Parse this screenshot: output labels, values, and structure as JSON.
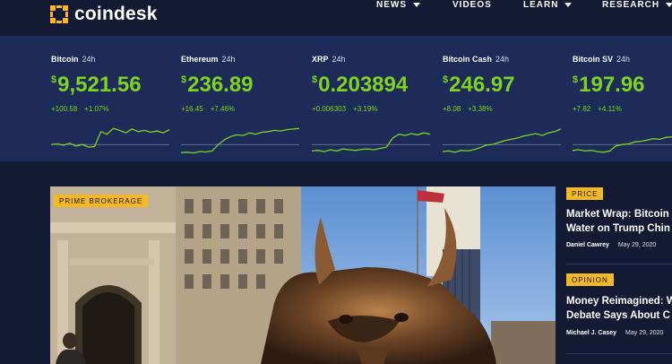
{
  "header": {
    "logo_text": "coindesk",
    "nav": [
      {
        "label": "NEWS",
        "dropdown": true
      },
      {
        "label": "VIDEOS",
        "dropdown": false
      },
      {
        "label": "LEARN",
        "dropdown": true
      },
      {
        "label": "RESEARCH",
        "dropdown": true
      }
    ]
  },
  "ticker": [
    {
      "name": "Bitcoin",
      "period": "24h",
      "currency": "$",
      "price": "9,521.56",
      "change": "+100.58",
      "change_pct": "+1.07%",
      "trend": [
        0.3,
        0.32,
        0.28,
        0.34,
        0.25,
        0.3,
        0.22,
        0.24,
        0.7,
        0.62,
        0.8,
        0.74,
        0.66,
        0.78,
        0.7,
        0.74,
        0.68,
        0.72,
        0.66,
        0.76
      ]
    },
    {
      "name": "Ethereum",
      "period": "24h",
      "currency": "$",
      "price": "236.89",
      "change": "+16.45",
      "change_pct": "+7.46%",
      "trend": [
        0.05,
        0.06,
        0.04,
        0.08,
        0.07,
        0.1,
        0.3,
        0.45,
        0.55,
        0.6,
        0.58,
        0.66,
        0.62,
        0.68,
        0.7,
        0.74,
        0.72,
        0.76,
        0.78,
        0.8
      ]
    },
    {
      "name": "XRP",
      "period": "24h",
      "currency": "$",
      "price": "0.203894",
      "change": "+0.006303",
      "change_pct": "+3.19%",
      "trend": [
        0.1,
        0.12,
        0.08,
        0.14,
        0.1,
        0.16,
        0.14,
        0.12,
        0.15,
        0.16,
        0.14,
        0.18,
        0.22,
        0.5,
        0.62,
        0.58,
        0.64,
        0.6,
        0.66,
        0.62
      ]
    },
    {
      "name": "Bitcoin Cash",
      "period": "24h",
      "currency": "$",
      "price": "246.97",
      "change": "+8.08",
      "change_pct": "+3.38%",
      "trend": [
        0.08,
        0.1,
        0.06,
        0.12,
        0.1,
        0.14,
        0.2,
        0.28,
        0.3,
        0.36,
        0.42,
        0.46,
        0.5,
        0.56,
        0.6,
        0.64,
        0.58,
        0.66,
        0.7,
        0.78
      ]
    },
    {
      "name": "Bitcoin SV",
      "period": "24h",
      "currency": "$",
      "price": "197.96",
      "change": "+7.82",
      "change_pct": "+4.11%",
      "trend": [
        0.12,
        0.14,
        0.1,
        0.12,
        0.08,
        0.06,
        0.1,
        0.26,
        0.3,
        0.32,
        0.38,
        0.4,
        0.44,
        0.48,
        0.46,
        0.52,
        0.54,
        0.6,
        0.62,
        0.66
      ]
    }
  ],
  "hero": {
    "badge": "PRIME BROKERAGE"
  },
  "sidebar": {
    "articles": [
      {
        "tag": "PRICE",
        "title_lines": [
          "Market Wrap: Bitcoin",
          "Water on Trump Chin"
        ],
        "author": "Daniel Cawrey",
        "date": "May 29, 2020"
      },
      {
        "tag": "OPINION",
        "title_lines": [
          "Money Reimagined: W",
          "Debate Says About C"
        ],
        "author": "Michael J. Casey",
        "date": "May 29, 2020"
      }
    ]
  },
  "colors": {
    "bg": "#141a33",
    "ticker_bg": "#1c2b57",
    "up": "#7ed321",
    "accent": "#f5b823"
  }
}
